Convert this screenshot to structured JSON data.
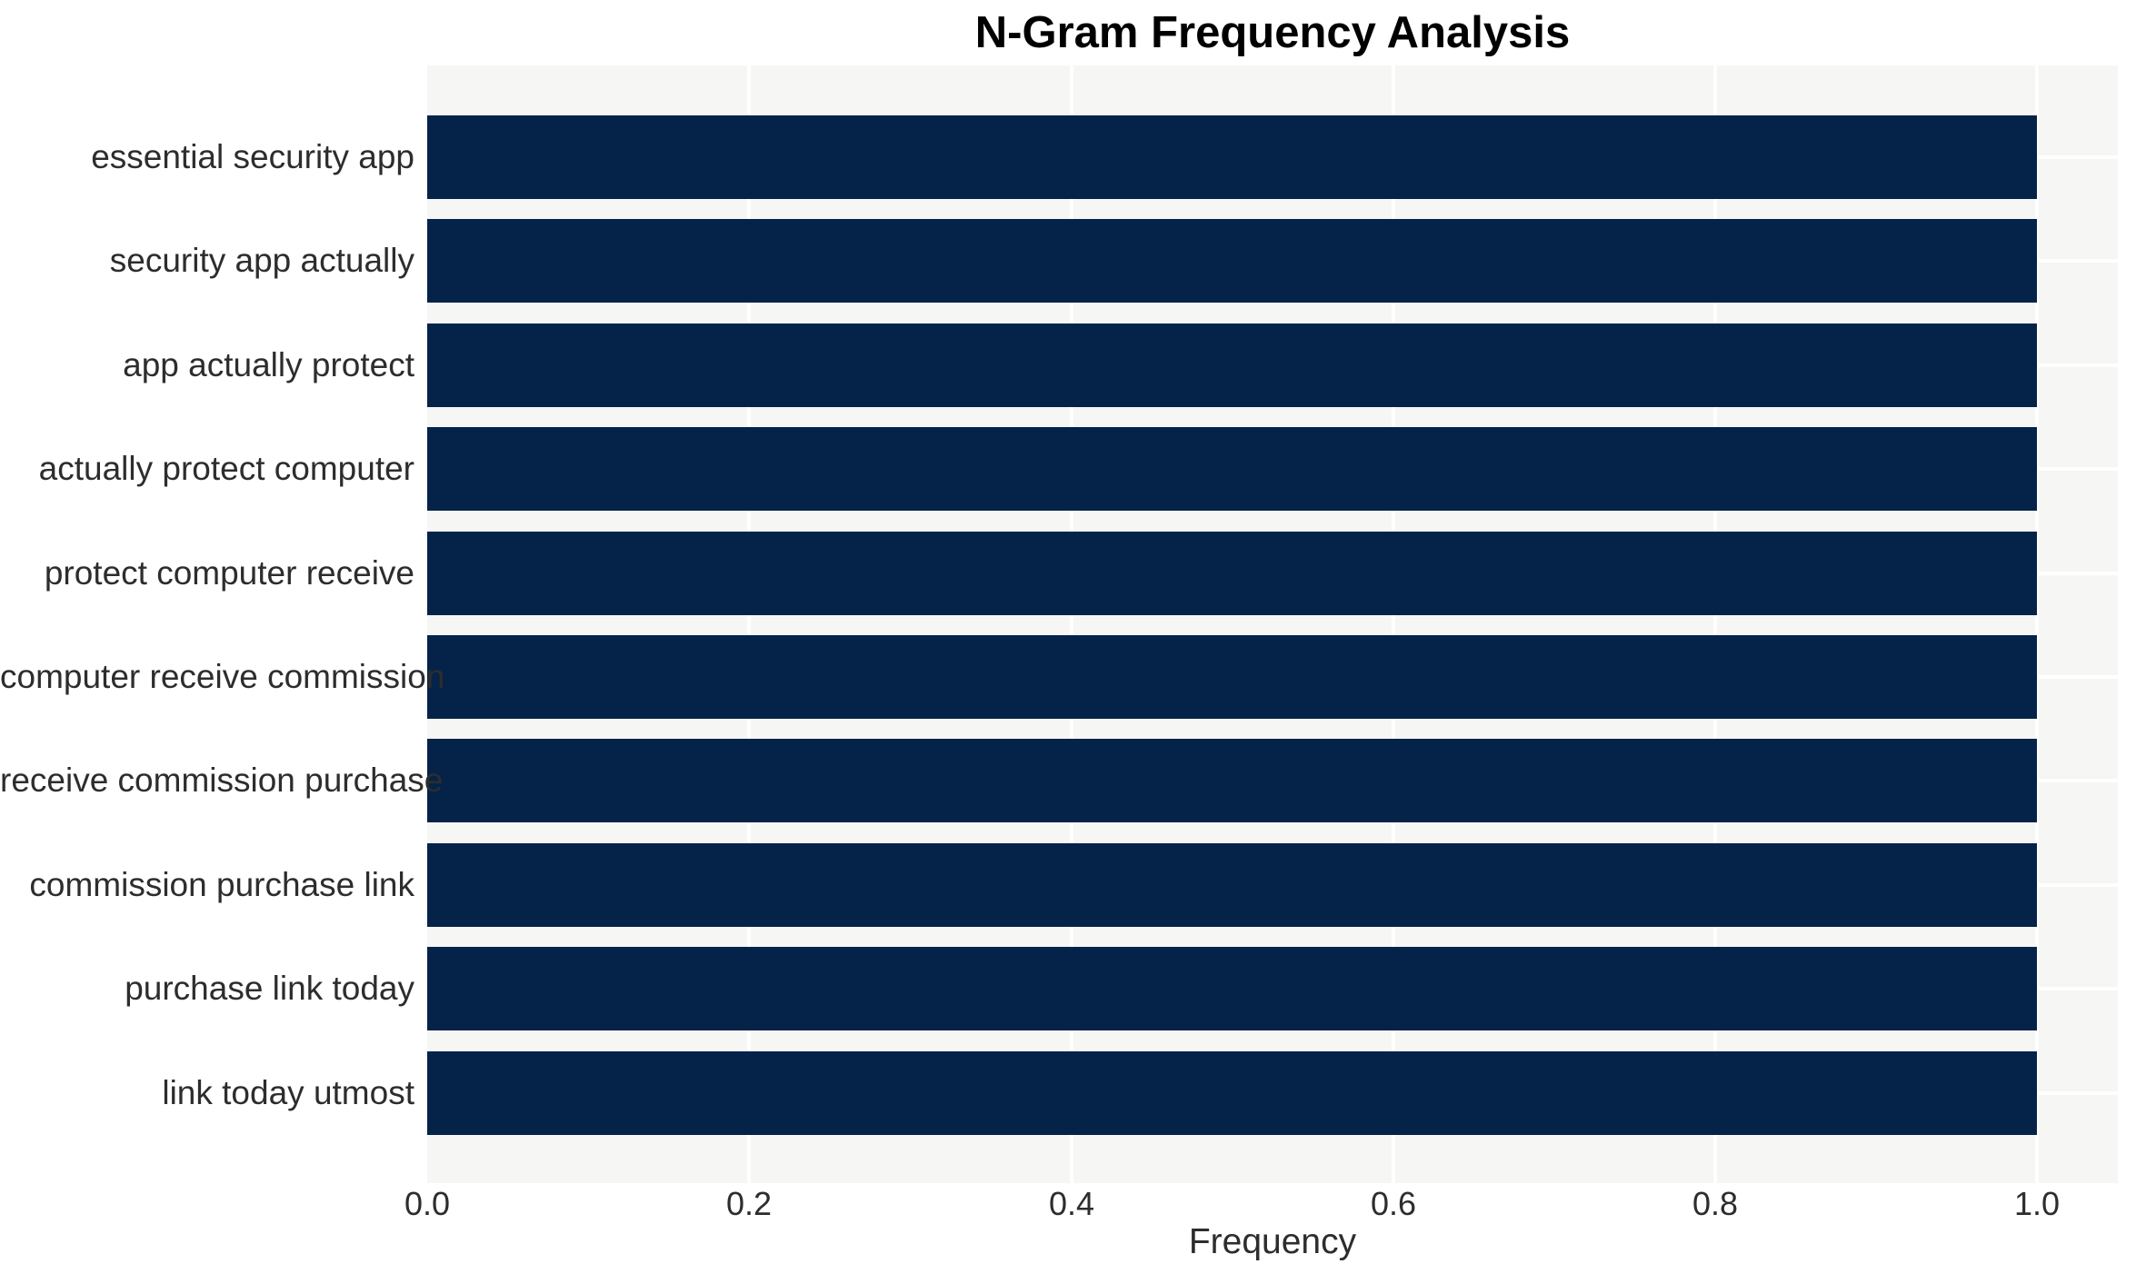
{
  "title": "N-Gram Frequency Analysis",
  "chart_data": {
    "type": "bar",
    "orientation": "horizontal",
    "title": "N-Gram Frequency Analysis",
    "xlabel": "Frequency",
    "ylabel": "",
    "categories": [
      "essential security app",
      "security app actually",
      "app actually protect",
      "actually protect computer",
      "protect computer receive",
      "computer receive commission",
      "receive commission purchase",
      "commission purchase link",
      "purchase link today",
      "link today utmost"
    ],
    "values": [
      1.0,
      1.0,
      1.0,
      1.0,
      1.0,
      1.0,
      1.0,
      1.0,
      1.0,
      1.0
    ],
    "xlim": [
      0,
      1.05
    ],
    "xticks": [
      0.0,
      0.2,
      0.4,
      0.6,
      0.8,
      1.0
    ],
    "xtick_labels": [
      "0.0",
      "0.2",
      "0.4",
      "0.6",
      "0.8",
      "1.0"
    ],
    "grid": true,
    "grid_color": "#ffffff",
    "legend": false,
    "bar_color": "#052348",
    "plot_bg_color": "#f6f6f5",
    "figure_bg_color": "#ffffff",
    "text_color": "#2d2d2d",
    "title_color": "#000000"
  }
}
